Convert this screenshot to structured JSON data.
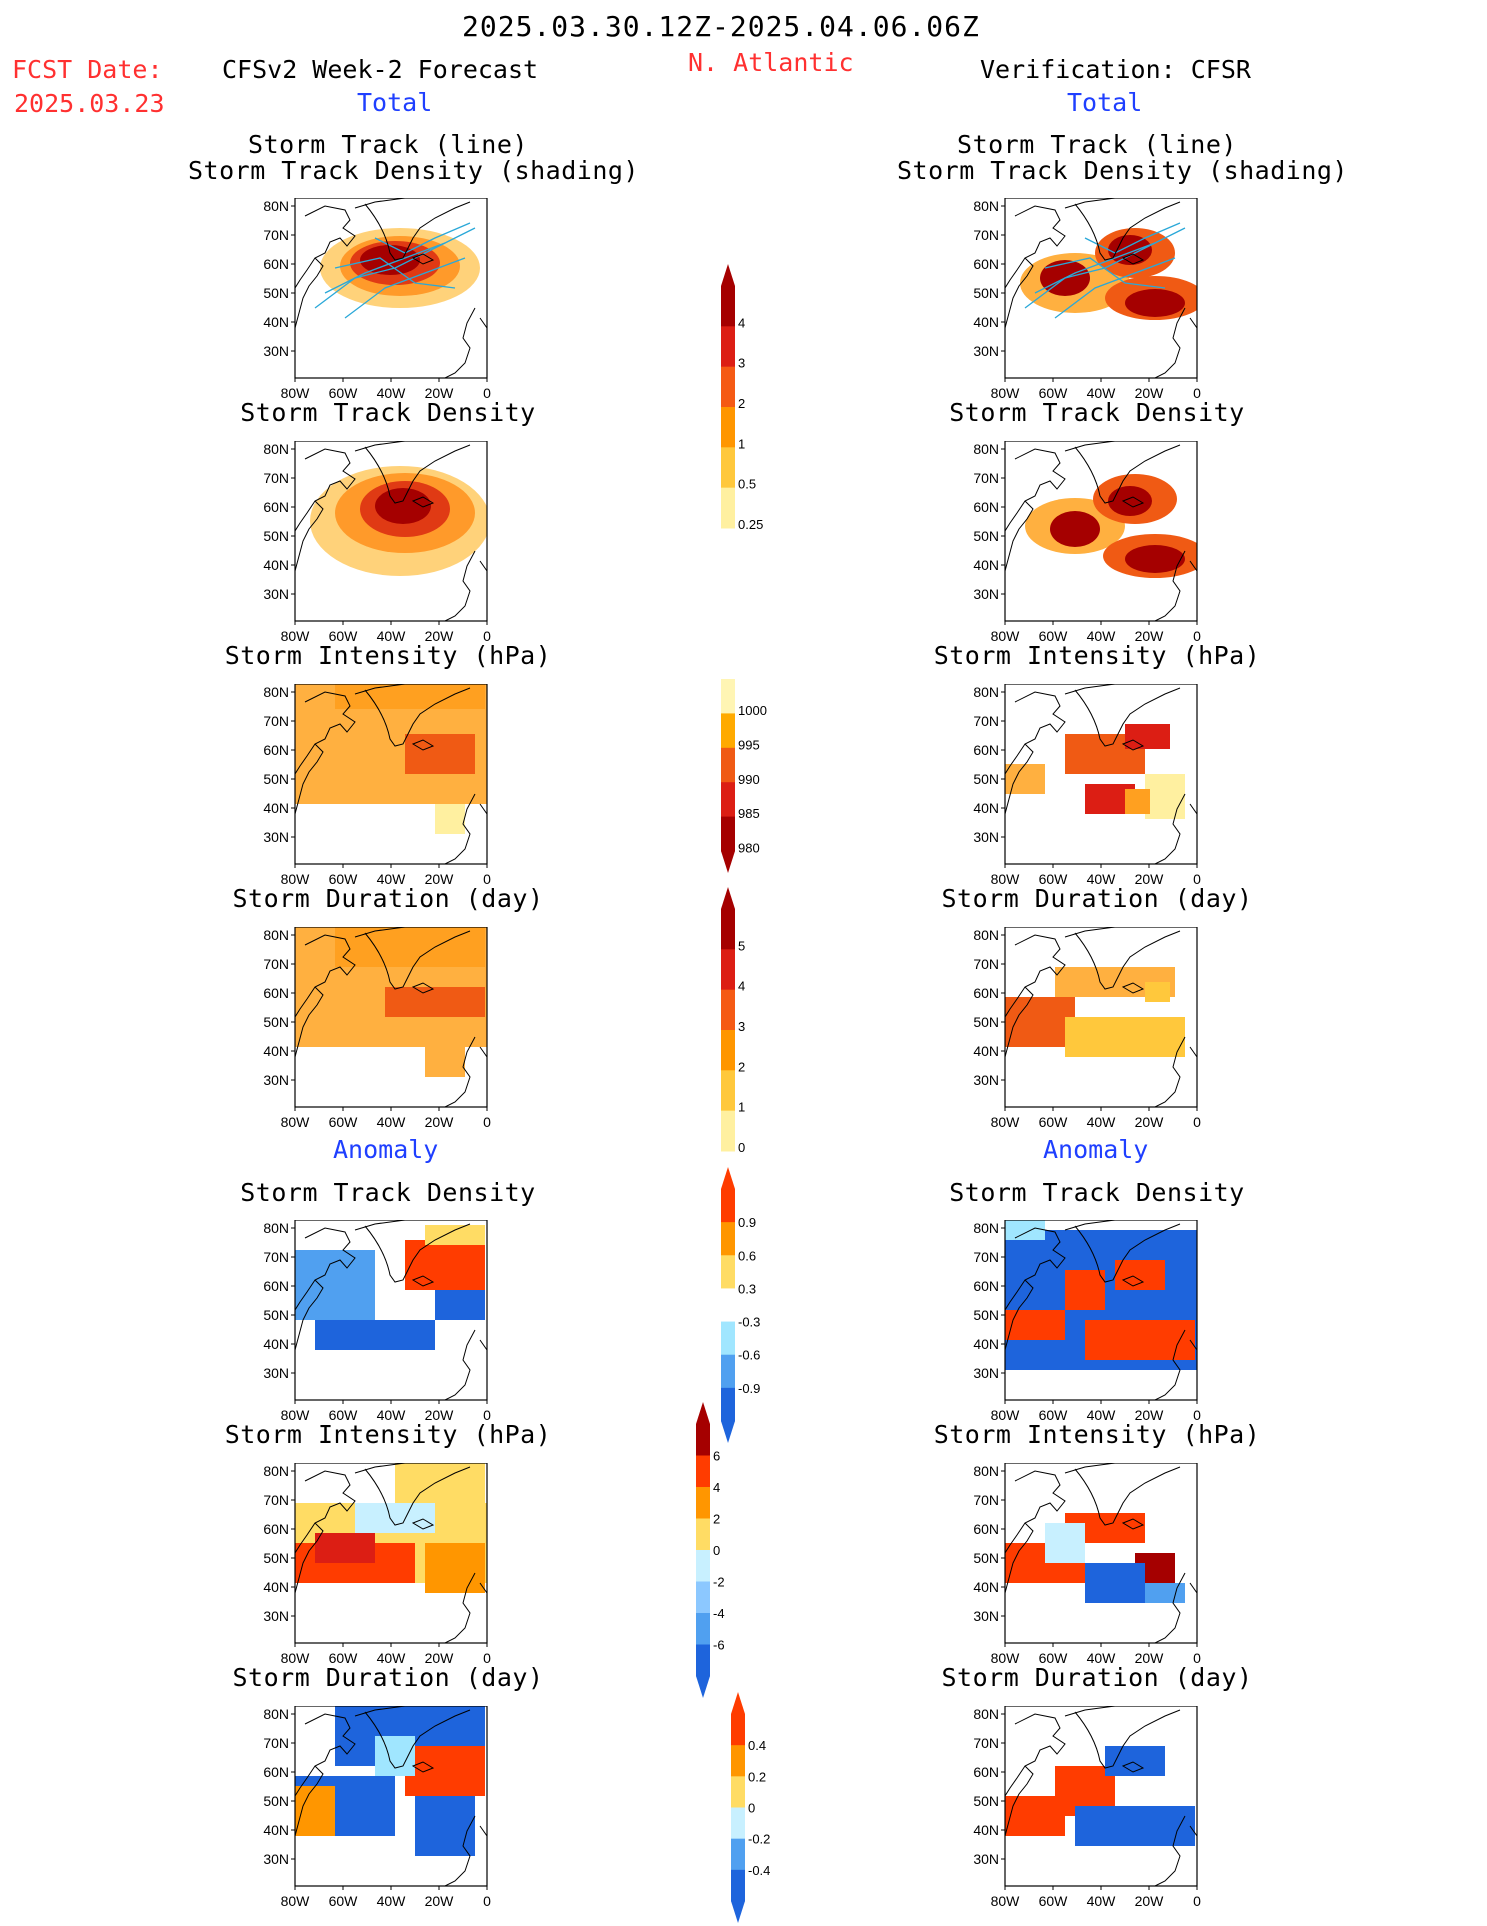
{
  "header": {
    "date_range": "2025.03.30.12Z-2025.04.06.06Z",
    "fcst_label": "FCST Date:",
    "fcst_date": "2025.03.23",
    "model_label": "CFSv2 Week-2 Forecast",
    "region": "N. Atlantic",
    "verif_label": "Verification: CFSR"
  },
  "sections": {
    "total": "Total",
    "anomaly": "Anomaly"
  },
  "panel_titles": {
    "track_line": "Storm Track (line)",
    "track_density_shading": "Storm Track Density (shading)",
    "track_density": "Storm Track Density",
    "intensity": "Storm Intensity (hPa)",
    "duration": "Storm Duration (day)"
  },
  "axes": {
    "lat_ticks": [
      "80N",
      "70N",
      "60N",
      "50N",
      "40N",
      "30N"
    ],
    "lon_ticks": [
      "80W",
      "60W",
      "40W",
      "20W",
      "0"
    ]
  },
  "colorbars": [
    {
      "id": "total-density",
      "labels": [
        "4",
        "3",
        "2",
        "1",
        "0.5",
        "0.25"
      ],
      "colors": [
        "#a50000",
        "#dc1e14",
        "#f55a14",
        "#ff9600",
        "#ffc83c",
        "#fff0a0"
      ],
      "arrow_top": true,
      "arrow_bottom": false
    },
    {
      "id": "total-intensity",
      "labels": [
        "1000",
        "995",
        "990",
        "985",
        "980"
      ],
      "colors": [
        "#fff5b4",
        "#ffaa00",
        "#f05a14",
        "#dc1e14",
        "#a50000"
      ],
      "arrow_top": false,
      "arrow_bottom": true
    },
    {
      "id": "total-duration",
      "labels": [
        "5",
        "4",
        "3",
        "2",
        "1",
        "0"
      ],
      "colors": [
        "#a50000",
        "#dc1e14",
        "#f55a14",
        "#ff9600",
        "#ffc83c",
        "#fff0a0"
      ],
      "arrow_top": true,
      "arrow_bottom": false
    },
    {
      "id": "anom-density",
      "labels": [
        "0.9",
        "0.6",
        "0.3",
        "-0.3",
        "-0.6",
        "-0.9"
      ],
      "colors": [
        "#ff3c00",
        "#ff9600",
        "#ffdc64",
        "#ffffff",
        "#a0e6ff",
        "#50a0f0",
        "#1e64dc"
      ],
      "arrow_top": true,
      "arrow_bottom": true
    },
    {
      "id": "anom-intensity",
      "labels": [
        "6",
        "4",
        "2",
        "0",
        "-2",
        "-4",
        "-6"
      ],
      "colors": [
        "#a50000",
        "#ff3c00",
        "#ff9600",
        "#ffdc64",
        "#c8f0ff",
        "#8cc8ff",
        "#50a0f0",
        "#1e64dc"
      ],
      "arrow_top": true,
      "arrow_bottom": true
    },
    {
      "id": "anom-duration",
      "labels": [
        "0.4",
        "0.2",
        "0",
        "-0.2",
        "-0.4"
      ],
      "colors": [
        "#ff3c00",
        "#ff9600",
        "#ffdc64",
        "#c8f0ff",
        "#50a0f0",
        "#1e64dc"
      ],
      "arrow_top": true,
      "arrow_bottom": true
    }
  ],
  "colors": {
    "red_text": "#ff3030",
    "blue_text": "#1f3fff",
    "track_lines": "#2aa8d8"
  }
}
